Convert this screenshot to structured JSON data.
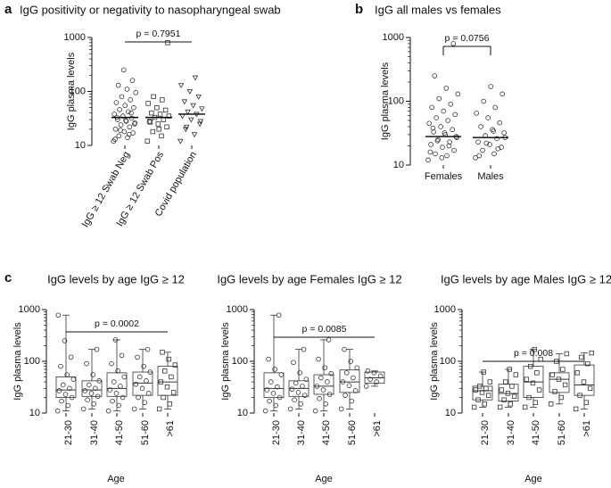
{
  "panel_labels": [
    "a",
    "b",
    "c"
  ],
  "chart_data": [
    {
      "type": "strip",
      "title": "IgG positivity or negativity to nasopharyngeal swab",
      "ylabel": "IgG plasma levels",
      "categories": [
        "IgG ≥ 12 Swab Neg",
        "IgG ≥ 12 Swab Pos",
        "Covid population"
      ],
      "markers": [
        "circle",
        "square",
        "triangle"
      ],
      "points": [
        [
          12,
          14,
          15,
          17,
          18,
          20,
          22,
          24,
          26,
          28,
          30,
          32,
          35,
          38,
          42,
          46,
          50,
          55,
          62,
          70,
          80,
          95,
          110,
          130,
          160,
          250,
          13,
          16,
          19,
          25,
          29,
          33,
          40
        ],
        [
          12,
          15,
          18,
          22,
          25,
          28,
          30,
          33,
          35,
          38,
          40,
          45,
          50,
          60,
          70,
          80,
          800,
          20,
          27
        ],
        [
          12,
          16,
          20,
          25,
          30,
          35,
          38,
          42,
          48,
          55,
          65,
          80,
          100,
          130,
          180,
          22,
          28
        ]
      ],
      "medians": [
        33,
        33,
        38
      ],
      "annotation": "p = 0.7951",
      "ylim": [
        10,
        1000
      ],
      "yticks": [
        10,
        100,
        1000
      ],
      "log_scale": true
    },
    {
      "type": "strip",
      "title": "IgG all males vs females",
      "ylabel": "IgG plasma levels",
      "categories": [
        "Females",
        "Males"
      ],
      "markers": [
        "circle",
        "circle"
      ],
      "points": [
        [
          12,
          14,
          15,
          17,
          19,
          21,
          23,
          25,
          27,
          30,
          33,
          36,
          40,
          45,
          50,
          55,
          62,
          70,
          80,
          90,
          110,
          130,
          160,
          250,
          800,
          13,
          16,
          20,
          24,
          28,
          32,
          38
        ],
        [
          13,
          15,
          17,
          19,
          21,
          23,
          26,
          29,
          32,
          36,
          40,
          46,
          55,
          65,
          80,
          100,
          130,
          170,
          14,
          18,
          22,
          27,
          34
        ]
      ],
      "medians": [
        28,
        27
      ],
      "annotation": "p = 0.0756",
      "ylim": [
        10,
        1000
      ],
      "yticks": [
        10,
        100,
        1000
      ],
      "log_scale": true
    },
    {
      "type": "box",
      "title": "IgG levels by age IgG ≥ 12",
      "ylabel": "IgG plasma levels",
      "xlabel": "Age",
      "categories": [
        "21-30",
        "31-40",
        "41-50",
        "51-60",
        ">61"
      ],
      "markers": [
        "circle",
        "circle",
        "circle",
        "circle",
        "square"
      ],
      "boxes": [
        {
          "min": 11,
          "q1": 20,
          "median": 28,
          "q3": 50,
          "max": 780
        },
        {
          "min": 12,
          "q1": 21,
          "median": 28,
          "q3": 42,
          "max": 170
        },
        {
          "min": 11,
          "q1": 21,
          "median": 30,
          "q3": 60,
          "max": 260
        },
        {
          "min": 12,
          "q1": 22,
          "median": 38,
          "q3": 62,
          "max": 170
        },
        {
          "min": 12,
          "q1": 22,
          "median": 40,
          "q3": 80,
          "max": 150
        }
      ],
      "points": [
        [
          11,
          14,
          17,
          20,
          23,
          27,
          30,
          35,
          45,
          55,
          80,
          120,
          250,
          780
        ],
        [
          12,
          15,
          18,
          21,
          24,
          27,
          30,
          35,
          42,
          55,
          90,
          170
        ],
        [
          11,
          14,
          17,
          20,
          24,
          28,
          33,
          40,
          50,
          65,
          90,
          130,
          260
        ],
        [
          12,
          16,
          20,
          24,
          30,
          36,
          42,
          50,
          62,
          80,
          120,
          170
        ],
        [
          12,
          15,
          20,
          25,
          32,
          40,
          50,
          65,
          85,
          110,
          150
        ]
      ],
      "annotation": "p = 0.0002",
      "ylim": [
        10,
        1000
      ],
      "yticks": [
        10,
        100,
        1000
      ],
      "log_scale": true
    },
    {
      "type": "box",
      "title": "IgG levels by age Females  IgG ≥ 12",
      "ylabel": "IgG plasma levels",
      "xlabel": "Age",
      "categories": [
        "21-30",
        "31-40",
        "41-50",
        "51-60",
        ">61"
      ],
      "markers": [
        "circle",
        "circle",
        "circle",
        "circle",
        "circle"
      ],
      "boxes": [
        {
          "min": 11,
          "q1": 20,
          "median": 30,
          "q3": 60,
          "max": 780
        },
        {
          "min": 12,
          "q1": 21,
          "median": 30,
          "q3": 42,
          "max": 170
        },
        {
          "min": 11,
          "q1": 23,
          "median": 33,
          "q3": 55,
          "max": 260
        },
        {
          "min": 12,
          "q1": 25,
          "median": 40,
          "q3": 68,
          "max": 170
        },
        {
          "min": 33,
          "q1": 38,
          "median": 48,
          "q3": 62,
          "max": 65
        }
      ],
      "points": [
        [
          11,
          14,
          17,
          20,
          24,
          28,
          32,
          40,
          55,
          70,
          110,
          780
        ],
        [
          12,
          15,
          18,
          22,
          25,
          29,
          33,
          38,
          45,
          60,
          95,
          170
        ],
        [
          11,
          15,
          19,
          23,
          28,
          33,
          40,
          48,
          58,
          75,
          110,
          260
        ],
        [
          12,
          17,
          22,
          27,
          34,
          40,
          48,
          60,
          75,
          100,
          170
        ],
        [
          33,
          40,
          45,
          52,
          60,
          65
        ]
      ],
      "annotation": "p = 0.0085",
      "ylim": [
        10,
        1000
      ],
      "yticks": [
        10,
        100,
        1000
      ],
      "log_scale": true
    },
    {
      "type": "box",
      "title": "IgG levels by age Males IgG ≥ 12",
      "ylabel": "IgG plasma levels",
      "xlabel": "Age",
      "categories": [
        "21-30",
        "31-40",
        "41-50",
        "51-60",
        ">61"
      ],
      "markers": [
        "square",
        "square",
        "square",
        "square",
        "square"
      ],
      "boxes": [
        {
          "min": 13,
          "q1": 18,
          "median": 27,
          "q3": 33,
          "max": 62
        },
        {
          "min": 13,
          "q1": 17,
          "median": 24,
          "q3": 36,
          "max": 70
        },
        {
          "min": 13,
          "q1": 20,
          "median": 40,
          "q3": 80,
          "max": 170
        },
        {
          "min": 15,
          "q1": 25,
          "median": 45,
          "q3": 60,
          "max": 140
        },
        {
          "min": 12,
          "q1": 22,
          "median": 35,
          "q3": 85,
          "max": 145
        }
      ],
      "points": [
        [
          13,
          15,
          18,
          22,
          25,
          28,
          30,
          33,
          40,
          62
        ],
        [
          13,
          15,
          18,
          21,
          24,
          28,
          33,
          40,
          55,
          70
        ],
        [
          13,
          16,
          20,
          28,
          38,
          45,
          60,
          80,
          110,
          170
        ],
        [
          15,
          20,
          26,
          35,
          45,
          55,
          70,
          100,
          140
        ],
        [
          12,
          16,
          22,
          30,
          40,
          60,
          90,
          120,
          145
        ]
      ],
      "annotation": "p = 0.008",
      "ylim": [
        10,
        1000
      ],
      "yticks": [
        10,
        100,
        1000
      ],
      "log_scale": true
    }
  ]
}
